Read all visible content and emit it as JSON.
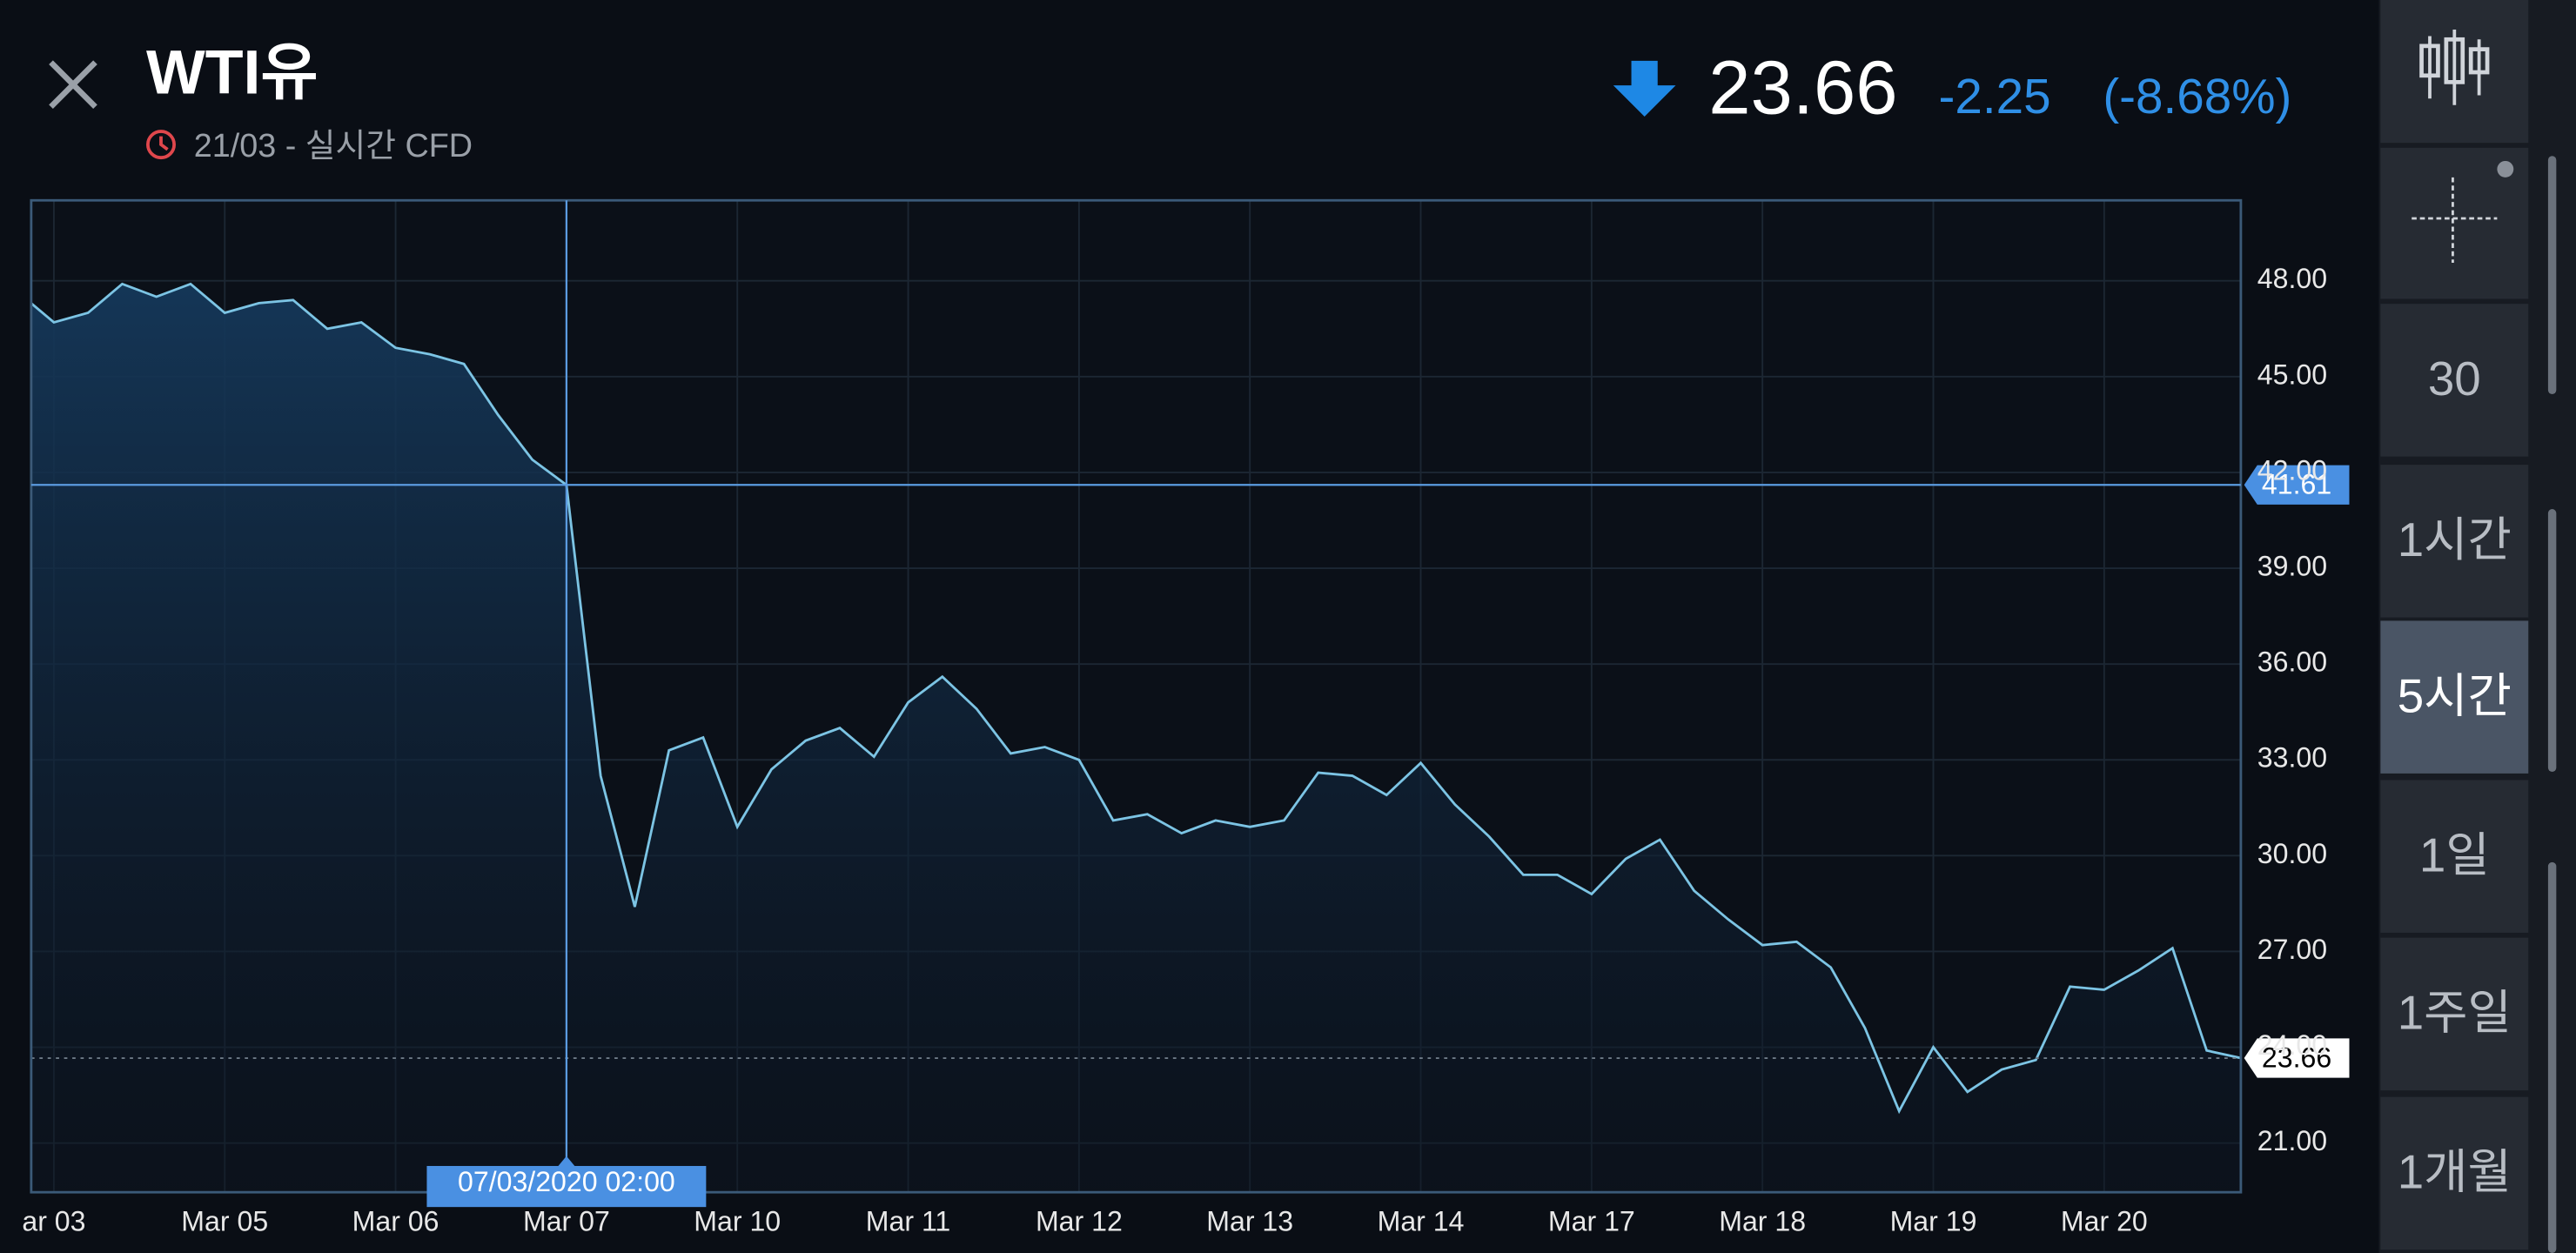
{
  "header": {
    "title": "WTI유",
    "subtitle": "21/03 - 실시간 CFD",
    "price": "23.66",
    "change": "-2.25",
    "change_pct": "(-8.68%)"
  },
  "sidebar": {
    "intervals": [
      "30",
      "1시간",
      "5시간",
      "1일",
      "1주일",
      "1개월"
    ],
    "selected": "5시간"
  },
  "chart_data": {
    "type": "line",
    "categories": [
      null,
      "ar 03",
      null,
      null,
      null,
      null,
      "Mar 05",
      null,
      null,
      null,
      null,
      "Mar 06",
      null,
      null,
      null,
      null,
      "Mar 07",
      null,
      null,
      null,
      null,
      "Mar 10",
      null,
      null,
      null,
      null,
      "Mar 11",
      null,
      null,
      null,
      null,
      "Mar 12",
      null,
      null,
      null,
      null,
      "Mar 13",
      null,
      null,
      null,
      null,
      "Mar 14",
      null,
      null,
      null,
      null,
      "Mar 17",
      null,
      null,
      null,
      null,
      "Mar 18",
      null,
      null,
      null,
      null,
      "Mar 19",
      null,
      null,
      null,
      null,
      "Mar 20",
      null,
      null,
      null,
      null
    ],
    "series": [
      {
        "name": "WTI유",
        "color": "#7cc4e4",
        "values": [
          47.6,
          46.7,
          47.0,
          47.9,
          47.5,
          47.9,
          47.0,
          47.3,
          47.4,
          46.5,
          46.7,
          45.9,
          45.7,
          45.4,
          43.8,
          42.4,
          41.61,
          32.5,
          28.4,
          33.3,
          33.7,
          30.9,
          32.7,
          33.6,
          34.0,
          33.1,
          34.8,
          35.6,
          34.6,
          33.2,
          33.4,
          33.0,
          31.1,
          31.3,
          30.7,
          31.1,
          30.9,
          31.1,
          32.6,
          32.5,
          31.9,
          32.9,
          31.6,
          30.6,
          29.4,
          29.4,
          28.8,
          29.9,
          30.5,
          28.9,
          28.0,
          27.2,
          27.3,
          26.5,
          24.6,
          22.0,
          24.0,
          22.6,
          23.3,
          23.6,
          25.9,
          25.8,
          26.4,
          27.1,
          23.9,
          23.66
        ]
      }
    ],
    "ylim": [
      19.46,
      50.52
    ],
    "yticks": [
      {
        "value": 21,
        "label": "21.00"
      },
      {
        "value": 24,
        "label": "24.00"
      },
      {
        "value": 27,
        "label": "27.00"
      },
      {
        "value": 30,
        "label": "30.00"
      },
      {
        "value": 33,
        "label": "33.00"
      },
      {
        "value": 36,
        "label": "36.00"
      },
      {
        "value": 39,
        "label": "39.00"
      },
      {
        "value": 42,
        "label": "42.00"
      },
      {
        "value": 45,
        "label": "45.00"
      },
      {
        "value": 48,
        "label": "48.00"
      }
    ],
    "grid": true,
    "last_price": 23.66,
    "crosshair": {
      "x_label": "07/03/2020 02:00",
      "y": 41.61
    }
  }
}
